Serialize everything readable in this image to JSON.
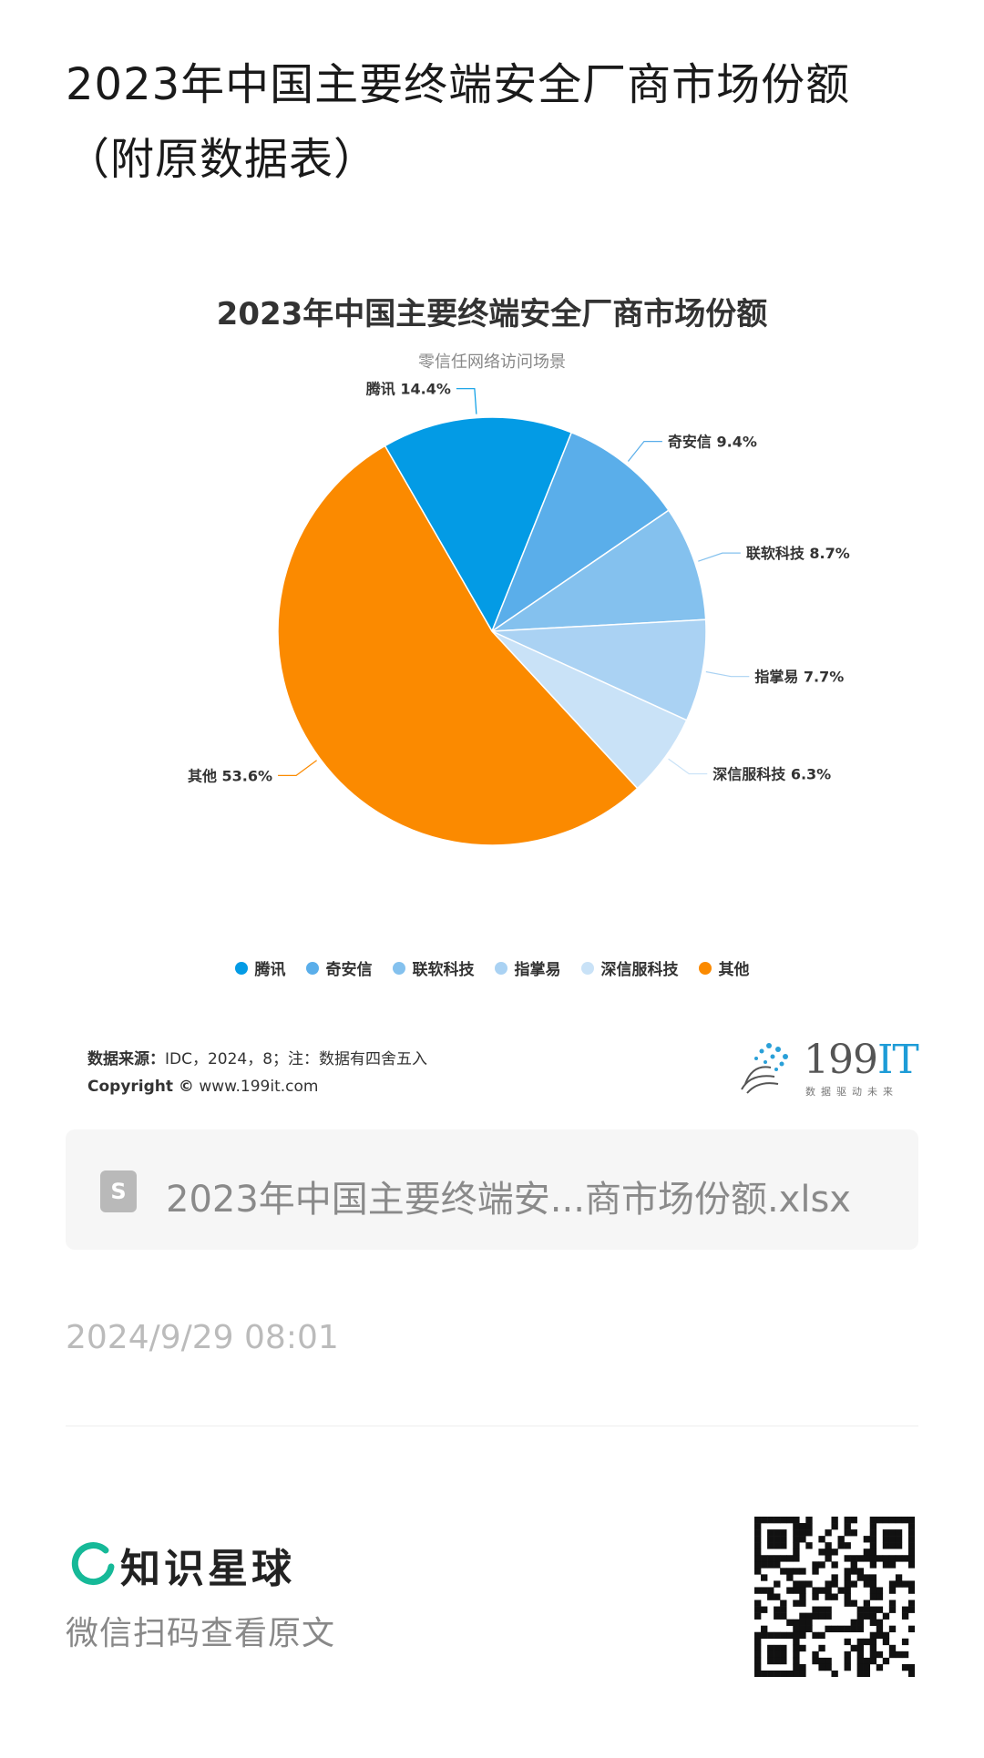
{
  "article": {
    "title": "2023年中国主要终端安全厂商市场份额（附原数据表）"
  },
  "chart_data": {
    "type": "pie",
    "title": "2023年中国主要终端安全厂商市场份额",
    "subtitle": "零信任网络访问场景",
    "slices": [
      {
        "name": "腾讯",
        "value": 14.4,
        "label": "腾讯 14.4%",
        "color": "#039be5"
      },
      {
        "name": "奇安信",
        "value": 9.4,
        "label": "奇安信 9.4%",
        "color": "#5aaeea"
      },
      {
        "name": "联软科技",
        "value": 8.7,
        "label": "联软科技 8.7%",
        "color": "#84c1ee"
      },
      {
        "name": "指掌易",
        "value": 7.7,
        "label": "指掌易 7.7%",
        "color": "#aad2f3"
      },
      {
        "name": "深信服科技",
        "value": 6.3,
        "label": "深信服科技 6.3%",
        "color": "#c9e2f7"
      },
      {
        "name": "其他",
        "value": 53.6,
        "label": "其他 53.6%",
        "color": "#fb8a00"
      }
    ],
    "legend_position": "bottom"
  },
  "source": {
    "label": "数据来源：",
    "text": "IDC，2024，8；注：数据有四舍五入",
    "copyright_label": "Copyright ©",
    "copyright_url": "www.199it.com"
  },
  "brand": {
    "name_num": "199",
    "name_it": "IT",
    "tagline": "数据驱动未来"
  },
  "file": {
    "icon_letter": "S",
    "name": "2023年中国主要终端安...商市场份额.xlsx"
  },
  "meta": {
    "timestamp": "2024/9/29 08:01"
  },
  "footer": {
    "app_name": "知识星球",
    "hint": "微信扫码查看原文",
    "accent": "#16b998"
  }
}
